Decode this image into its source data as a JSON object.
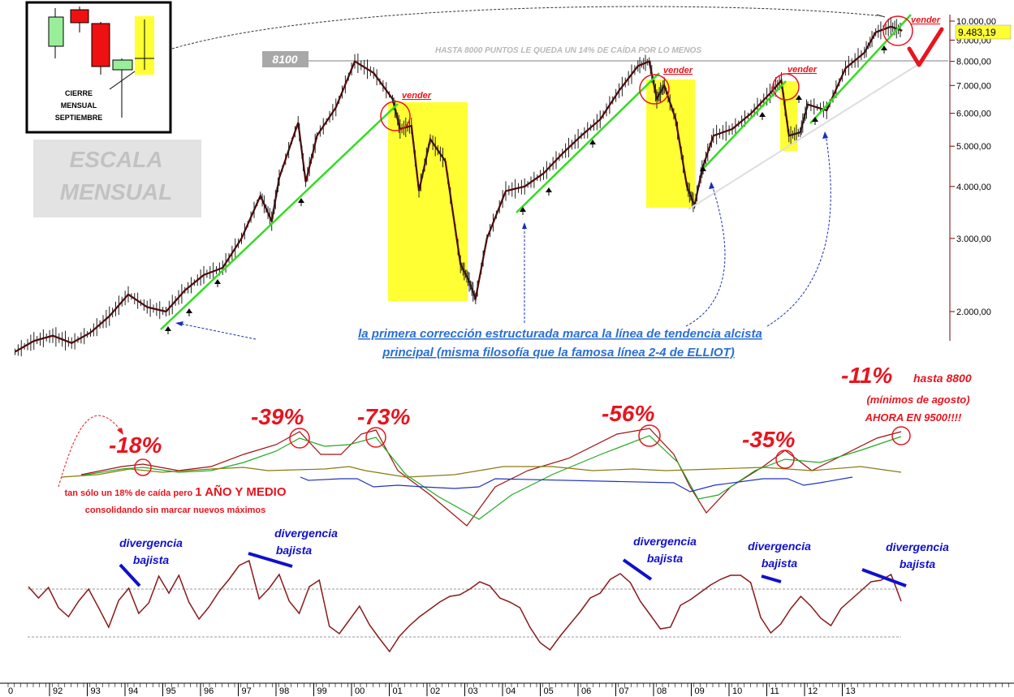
{
  "legend_box": {
    "caption_line1": "CIERRE",
    "caption_line2": "MENSUAL",
    "caption_line3": "SEPTIEMBRE"
  },
  "scale_label": {
    "line1": "ESCALA",
    "line2": "MENSUAL"
  },
  "header_note": "HASTA 8000 PUNTOS LE QUEDA UN 14% DE CAÍDA POR LO MENOS",
  "level_tag": "8100",
  "price_tag": "9.483,19",
  "sell_label": "vender",
  "main_note": {
    "line1": "la primera corrección estructurada marca la línea de tendencia alcista",
    "line2": "principal (misma filosofía que la famosa línea 2-4 de ELLIOT)"
  },
  "drawdowns": {
    "d1": "-18%",
    "d2": "-39%",
    "d3": "-73%",
    "d4": "-56%",
    "d5": "-35%",
    "d6_pct": "-11%",
    "d6_text": "hasta 8800",
    "d6_line2": "(mínimos de agosto)",
    "d6_line3": "AHORA EN 9500!!!!"
  },
  "consolidation_note": {
    "line1_pre": "tan sólo un 18% de caída pero ",
    "line1_em": "1 AÑO Y MEDIO",
    "line2": "consolidando sin marcar nuevos máximos"
  },
  "divergence": {
    "word1": "divergencia",
    "word2": "bajista"
  },
  "colors": {
    "price": "#5a0000",
    "trend": "#33dd22",
    "highlight": "#ffff33",
    "annotation_red": "#e8141e",
    "note_blue": "#2a6fd6",
    "div_blue": "#1010cc",
    "osc": "#8b1a1a"
  },
  "chart_data": {
    "type": "line",
    "title": "",
    "y_scale": "log",
    "x_ticks": [
      "92",
      "93",
      "94",
      "95",
      "96",
      "97",
      "98",
      "99",
      "00",
      "01",
      "02",
      "03",
      "04",
      "05",
      "06",
      "07",
      "08",
      "09",
      "10",
      "11",
      "12",
      "13"
    ],
    "y_ticks": [
      "10.000,00",
      "9.000,00",
      "8.000,00",
      "7.000,00",
      "6.000,00",
      "5.000,00",
      "4.000,00",
      "3.000,00",
      "2.000,00"
    ],
    "y_values": [
      10000,
      9000,
      8000,
      7000,
      6000,
      5000,
      4000,
      3000,
      2000
    ],
    "series": [
      {
        "values": [
          [
            1991.0,
            1600
          ],
          [
            1991.5,
            1700
          ],
          [
            1992.0,
            1750
          ],
          [
            1992.5,
            1680
          ],
          [
            1993.0,
            1780
          ],
          [
            1993.5,
            1950
          ],
          [
            1994.0,
            2200
          ],
          [
            1994.5,
            2050
          ],
          [
            1995.0,
            2000
          ],
          [
            1995.5,
            2250
          ],
          [
            1996.0,
            2450
          ],
          [
            1996.5,
            2550
          ],
          [
            1997.0,
            3000
          ],
          [
            1997.5,
            3800
          ],
          [
            1997.8,
            3300
          ],
          [
            1998.0,
            4200
          ],
          [
            1998.5,
            5700
          ],
          [
            1998.7,
            4100
          ],
          [
            1999.0,
            5300
          ],
          [
            1999.5,
            6200
          ],
          [
            2000.0,
            8000
          ],
          [
            2000.5,
            7500
          ],
          [
            2001.0,
            6500
          ],
          [
            2001.2,
            5500
          ],
          [
            2001.5,
            5600
          ],
          [
            2001.7,
            3900
          ],
          [
            2002.0,
            5200
          ],
          [
            2002.4,
            4600
          ],
          [
            2002.8,
            2600
          ],
          [
            2003.0,
            2400
          ],
          [
            2003.2,
            2150
          ],
          [
            2003.5,
            3000
          ],
          [
            2004.0,
            3900
          ],
          [
            2004.5,
            4000
          ],
          [
            2005.0,
            4300
          ],
          [
            2005.5,
            4800
          ],
          [
            2006.0,
            5300
          ],
          [
            2006.5,
            5800
          ],
          [
            2007.0,
            6800
          ],
          [
            2007.5,
            7800
          ],
          [
            2007.8,
            8000
          ],
          [
            2008.0,
            6500
          ],
          [
            2008.2,
            7000
          ],
          [
            2008.5,
            5800
          ],
          [
            2008.8,
            4000
          ],
          [
            2009.0,
            3600
          ],
          [
            2009.2,
            4400
          ],
          [
            2009.5,
            5300
          ],
          [
            2010.0,
            5500
          ],
          [
            2010.5,
            6000
          ],
          [
            2011.0,
            6700
          ],
          [
            2011.3,
            7200
          ],
          [
            2011.5,
            5300
          ],
          [
            2011.8,
            5400
          ],
          [
            2012.0,
            6300
          ],
          [
            2012.5,
            6100
          ],
          [
            2013.0,
            7700
          ],
          [
            2013.5,
            8400
          ],
          [
            2013.8,
            9400
          ],
          [
            2014.2,
            9700
          ],
          [
            2014.5,
            9483
          ]
        ]
      }
    ]
  }
}
